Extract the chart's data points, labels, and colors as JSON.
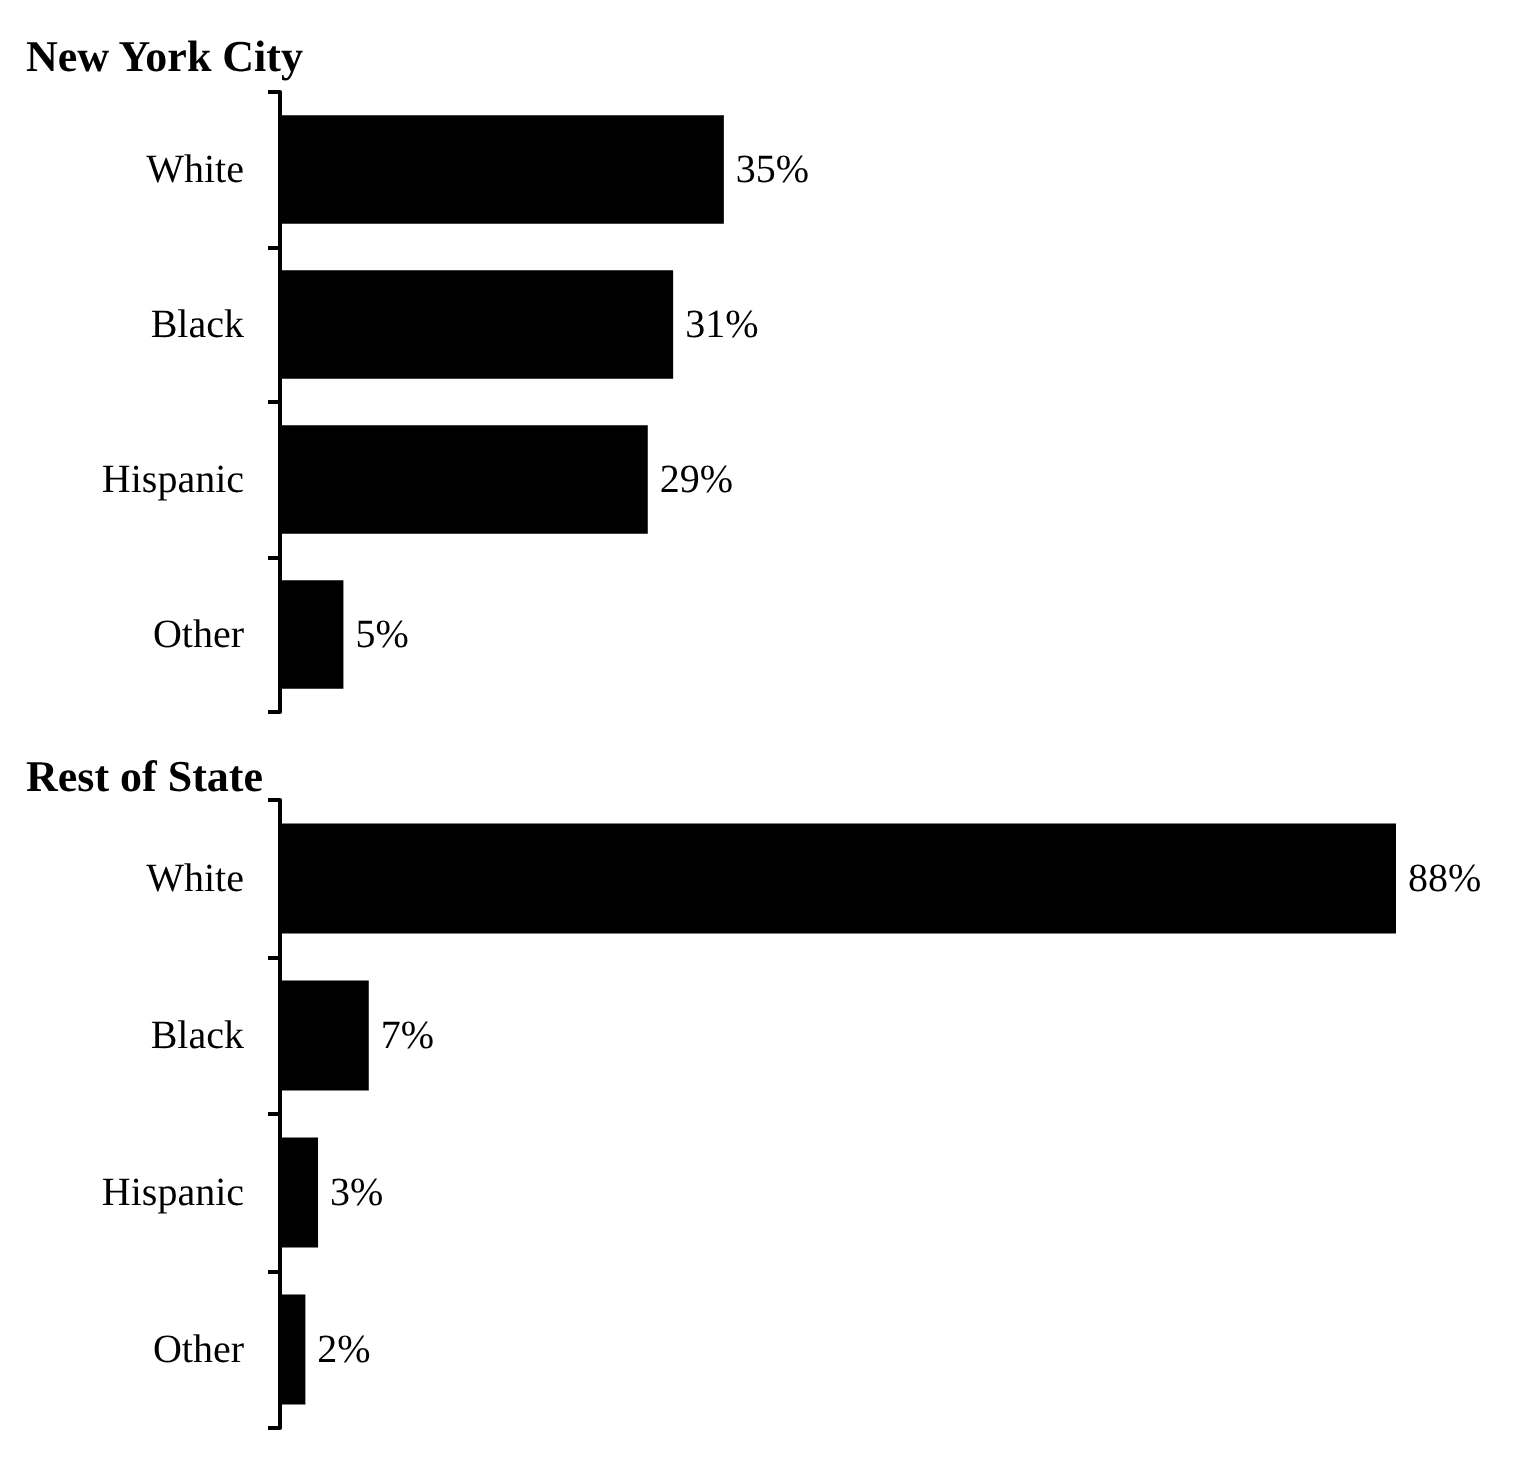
{
  "chart_data": [
    {
      "type": "bar",
      "orientation": "horizontal",
      "title": "New York City",
      "categories": [
        "White",
        "Black",
        "Hispanic",
        "Other"
      ],
      "values": [
        35,
        31,
        29,
        5
      ],
      "value_labels": [
        "35%",
        "31%",
        "29%",
        "5%"
      ],
      "color": "#000000"
    },
    {
      "type": "bar",
      "orientation": "horizontal",
      "title": "Rest of State",
      "categories": [
        "White",
        "Black",
        "Hispanic",
        "Other"
      ],
      "values": [
        88,
        7,
        3,
        2
      ],
      "value_labels": [
        "88%",
        "7%",
        "3%",
        "2%"
      ],
      "color": "#000000"
    }
  ]
}
